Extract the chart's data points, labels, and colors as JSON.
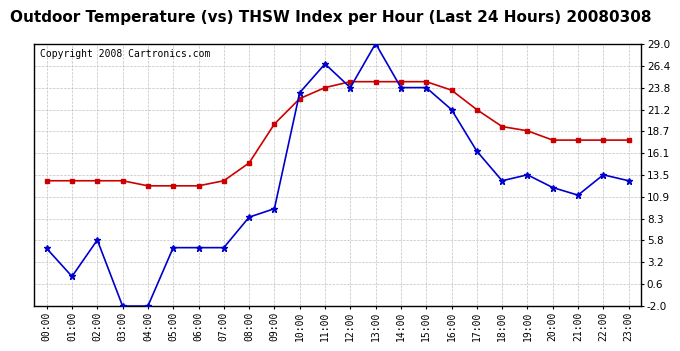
{
  "title": "Outdoor Temperature (vs) THSW Index per Hour (Last 24 Hours) 20080308",
  "copyright": "Copyright 2008 Cartronics.com",
  "hours": [
    "00:00",
    "01:00",
    "02:00",
    "03:00",
    "04:00",
    "05:00",
    "06:00",
    "07:00",
    "08:00",
    "09:00",
    "10:00",
    "11:00",
    "12:00",
    "13:00",
    "14:00",
    "15:00",
    "16:00",
    "17:00",
    "18:00",
    "19:00",
    "20:00",
    "21:00",
    "22:00",
    "23:00"
  ],
  "temp_blue": [
    4.8,
    1.5,
    5.8,
    -2.0,
    -2.0,
    4.9,
    4.9,
    4.9,
    8.5,
    9.5,
    23.2,
    26.6,
    23.8,
    29.0,
    23.8,
    23.8,
    21.2,
    16.3,
    12.8,
    13.5,
    12.0,
    11.1,
    13.5,
    12.8
  ],
  "thsw_red": [
    12.8,
    12.8,
    12.8,
    12.8,
    12.2,
    12.2,
    12.2,
    12.8,
    14.9,
    19.5,
    22.5,
    23.8,
    24.5,
    24.5,
    24.5,
    24.5,
    23.5,
    21.2,
    19.2,
    18.7,
    17.6,
    17.6,
    17.6,
    17.6
  ],
  "y_ticks": [
    -2.0,
    0.6,
    3.2,
    5.8,
    8.3,
    10.9,
    13.5,
    16.1,
    18.7,
    21.2,
    23.8,
    26.4,
    29.0
  ],
  "ymin": -2.0,
  "ymax": 29.0,
  "bg_color": "#ffffff",
  "plot_bg_color": "#ffffff",
  "grid_color": "#bbbbbb",
  "blue_color": "#0000cc",
  "red_color": "#cc0000",
  "title_fontsize": 11,
  "copyright_fontsize": 7
}
